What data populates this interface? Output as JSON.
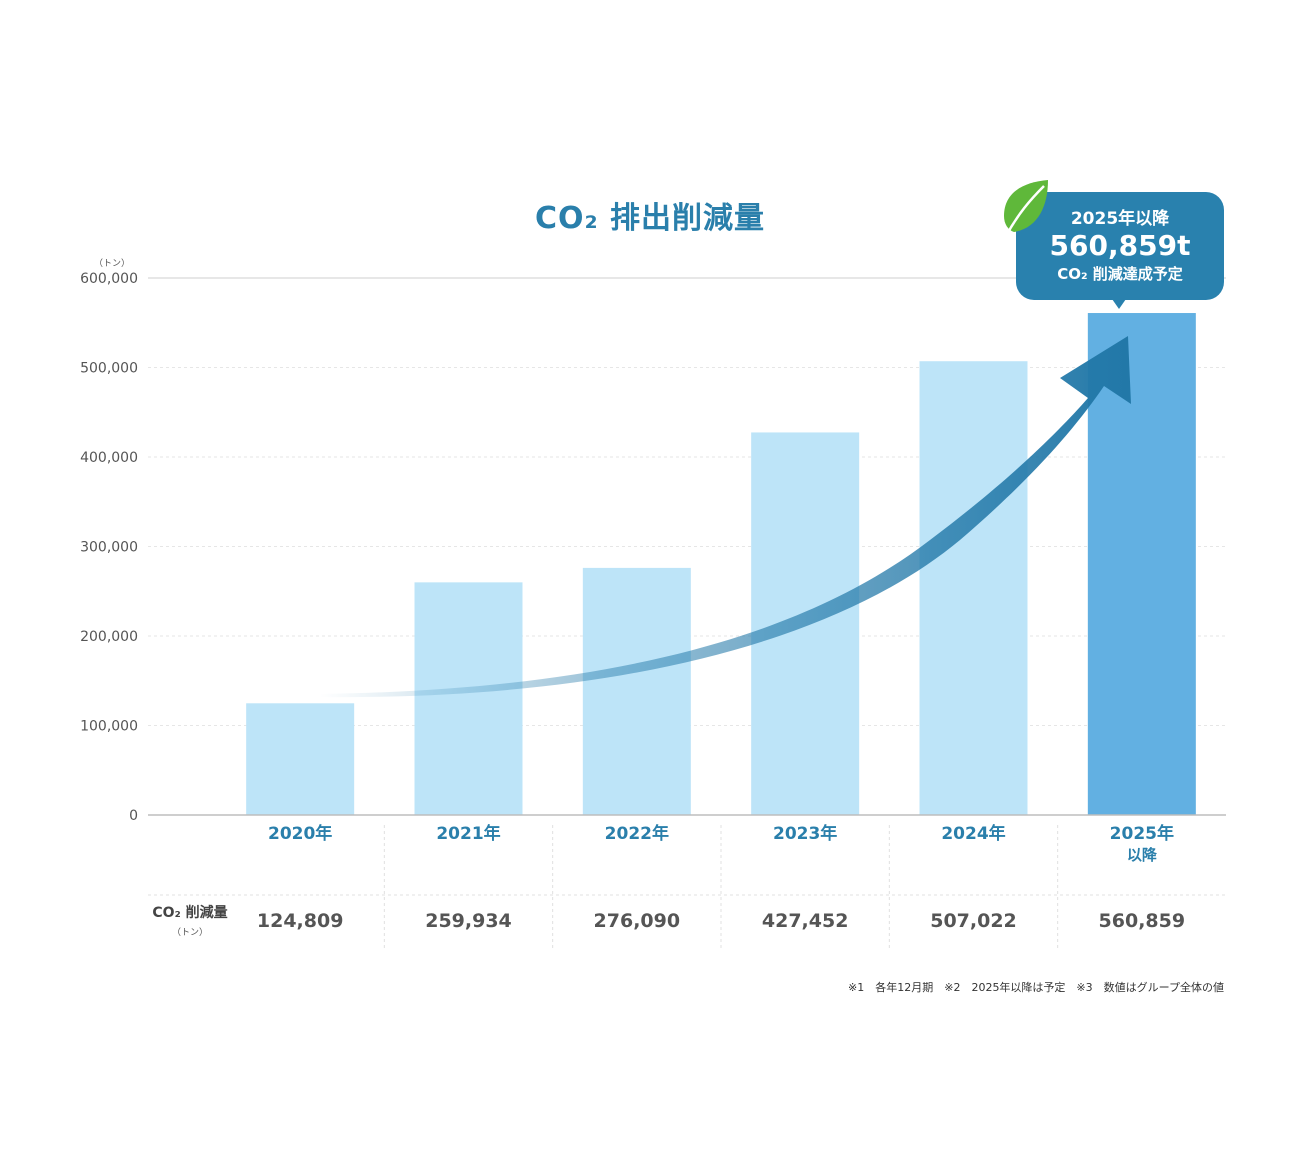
{
  "chart_data": {
    "type": "bar",
    "title": "CO₂ 排出削減量",
    "ylabel": "（トン）",
    "ylim": [
      0,
      600000
    ],
    "yticks": [
      "0",
      "100,000",
      "200,000",
      "300,000",
      "400,000",
      "500,000",
      "600,000"
    ],
    "categories": [
      "2020年",
      "2021年",
      "2022年",
      "2023年",
      "2024年",
      "2025年\n以降"
    ],
    "values": [
      124809,
      259934,
      276090,
      427452,
      507022,
      560859
    ],
    "highlight_index": 5,
    "grid": true,
    "colors": {
      "bar": "#bde4f8",
      "highlight": "#62b0e2",
      "title": "#2a7fab",
      "arrow": "#2278a8"
    }
  },
  "table": {
    "row_label": "CO₂ 削減量",
    "row_unit": "（トン）",
    "cells": [
      "124,809",
      "259,934",
      "276,090",
      "427,452",
      "507,022",
      "560,859"
    ]
  },
  "callout": {
    "line1": "2025年以降",
    "line2": "560,859t",
    "line3": "CO₂ 削減達成予定",
    "icon": "leaf-icon"
  },
  "notes": "※1　各年12月期　※2　2025年以降は予定　※3　数値はグループ全体の値"
}
